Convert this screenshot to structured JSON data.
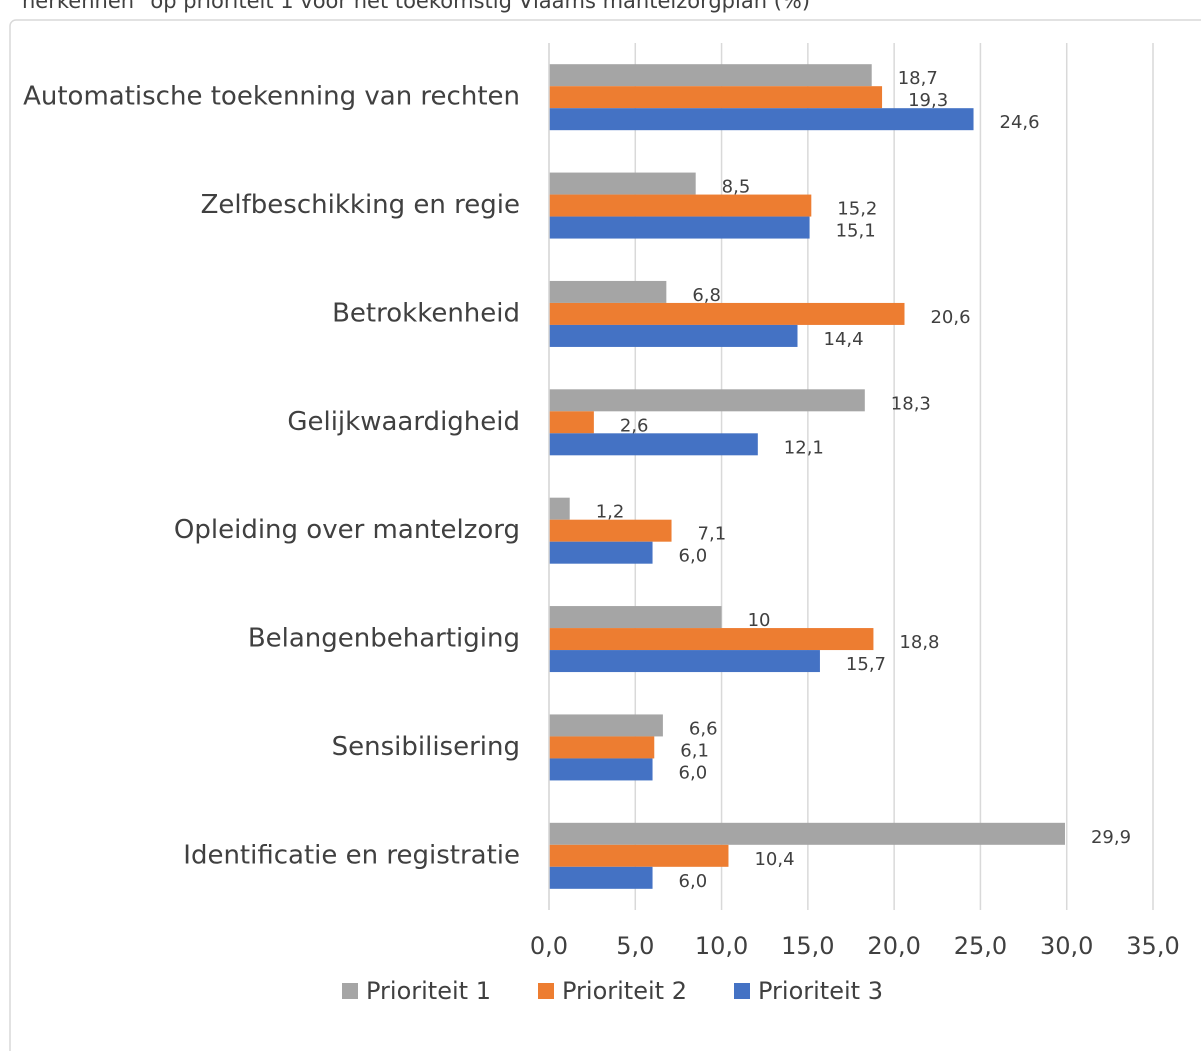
{
  "chart_data": {
    "type": "hbar",
    "title": "herkennen\" op prioriteit 1 voor het toekomstig Vlaams mantelzorgplan (%)",
    "categories": [
      "Automatische toekenning van rechten",
      "Zelfbeschikking en regie",
      "Betrokkenheid",
      "Gelijkwaardigheid",
      "Opleiding over mantelzorg",
      "Belangenbehartiging",
      "Sensibilisering",
      "Identificatie en registratie"
    ],
    "series": [
      {
        "name": "Prioriteit 1",
        "color": "#a5a5a5",
        "values": [
          18.7,
          8.5,
          6.8,
          18.3,
          1.2,
          10,
          6.6,
          29.9
        ],
        "value_labels": [
          "18,7",
          "8,5",
          "6,8",
          "18,3",
          "1,2",
          "10",
          "6,6",
          "29,9"
        ]
      },
      {
        "name": "Prioriteit 2",
        "color": "#ed7d31",
        "values": [
          19.3,
          15.2,
          20.6,
          2.6,
          7.1,
          18.8,
          6.1,
          10.4
        ],
        "value_labels": [
          "19,3",
          "15,2",
          "20,6",
          "2,6",
          "7,1",
          "18,8",
          "6,1",
          "10,4"
        ]
      },
      {
        "name": "Prioriteit 3",
        "color": "#4472c4",
        "values": [
          24.6,
          15.1,
          14.4,
          12.1,
          6.0,
          15.7,
          6.0,
          6.0
        ],
        "value_labels": [
          "24,6",
          "15,1",
          "14,4",
          "12,1",
          "6,0",
          "15,7",
          "6,0",
          "6,0"
        ]
      }
    ],
    "xlim": [
      0,
      35
    ],
    "xticks": [
      {
        "value": 0,
        "label": "0,0"
      },
      {
        "value": 5,
        "label": "5,0"
      },
      {
        "value": 10,
        "label": "10,0"
      },
      {
        "value": 15,
        "label": "15,0"
      },
      {
        "value": 20,
        "label": "20,0"
      },
      {
        "value": 25,
        "label": "25,0"
      },
      {
        "value": 30,
        "label": "30,0"
      },
      {
        "value": 35,
        "label": "35,0"
      }
    ],
    "grid": true,
    "legend": "bottom"
  }
}
